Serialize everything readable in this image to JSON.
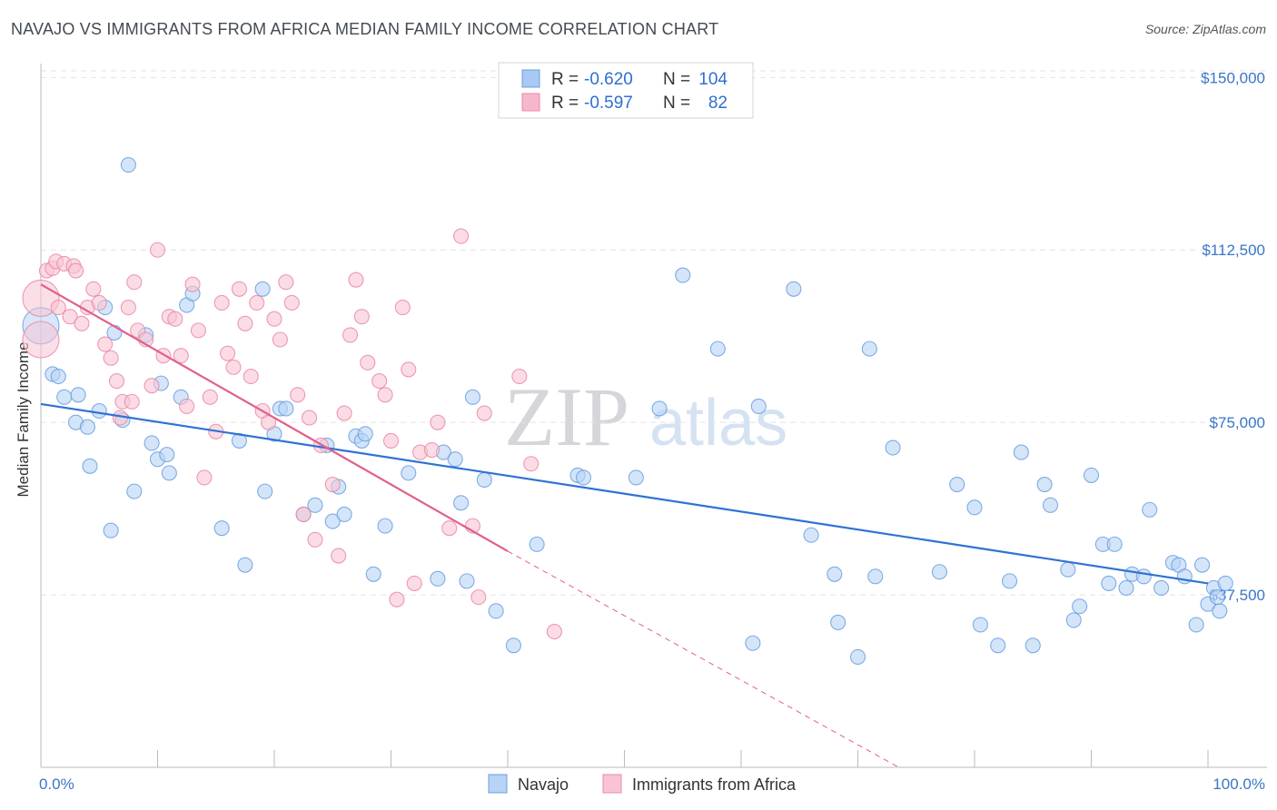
{
  "title": "NAVAJO VS IMMIGRANTS FROM AFRICA MEDIAN FAMILY INCOME CORRELATION CHART",
  "source": "Source: ZipAtlas.com",
  "watermark": {
    "zip": "ZIP",
    "atlas": "atlas"
  },
  "legend": {
    "rows": [
      {
        "r_label": "R =",
        "r_value": "-0.620",
        "n_label": "N =",
        "n_value": "104",
        "color": "#a9c8f2"
      },
      {
        "r_label": "R =",
        "r_value": "-0.597",
        "n_label": "N =",
        "n_value": "82",
        "color": "#f6b7cb"
      }
    ]
  },
  "chart_data": {
    "type": "scatter",
    "title": "NAVAJO VS IMMIGRANTS FROM AFRICA MEDIAN FAMILY INCOME CORRELATION CHART",
    "xlabel": "",
    "ylabel": "Median Family Income",
    "xlim": [
      0,
      100
    ],
    "ylim": [
      0,
      155000
    ],
    "x_tick_labels": [
      "0.0%",
      "100.0%"
    ],
    "y_ticks": [
      37500,
      75000,
      112500,
      150000
    ],
    "y_tick_labels": [
      "$37,500",
      "$75,000",
      "$112,500",
      "$150,000"
    ],
    "grid": true,
    "legend_position": "top-center",
    "series": [
      {
        "name": "Navajo",
        "color": "#6a9fe0",
        "fill": "#b8d3f5",
        "trend": {
          "x": [
            0,
            100
          ],
          "y": [
            79000,
            40000
          ],
          "color": "#2f72d4"
        },
        "points": [
          [
            0,
            96000,
            "L"
          ],
          [
            1,
            85500
          ],
          [
            1.5,
            85000
          ],
          [
            2,
            80500
          ],
          [
            3,
            75000
          ],
          [
            3.2,
            81000
          ],
          [
            4,
            74000
          ],
          [
            4.2,
            65500
          ],
          [
            5,
            77500
          ],
          [
            5.5,
            100000
          ],
          [
            6,
            51500
          ],
          [
            6.3,
            94500
          ],
          [
            7,
            75500
          ],
          [
            7.5,
            131000
          ],
          [
            8,
            60000
          ],
          [
            9,
            94000
          ],
          [
            9.5,
            70500
          ],
          [
            10,
            67000
          ],
          [
            10.3,
            83500
          ],
          [
            10.8,
            68000
          ],
          [
            11,
            64000
          ],
          [
            12,
            80500
          ],
          [
            12.5,
            100500
          ],
          [
            13,
            103000
          ],
          [
            15.5,
            52000
          ],
          [
            17,
            71000
          ],
          [
            17.5,
            44000
          ],
          [
            19,
            104000
          ],
          [
            19.2,
            60000
          ],
          [
            20,
            72500
          ],
          [
            20.5,
            78000
          ],
          [
            21,
            78000
          ],
          [
            22.5,
            55000
          ],
          [
            23.5,
            57000
          ],
          [
            24.5,
            70000
          ],
          [
            25,
            53500
          ],
          [
            25.5,
            61000
          ],
          [
            26,
            55000
          ],
          [
            27,
            72000
          ],
          [
            27.5,
            71000
          ],
          [
            27.8,
            72500
          ],
          [
            28.5,
            42000
          ],
          [
            29.5,
            52500
          ],
          [
            31.5,
            64000
          ],
          [
            34,
            41000
          ],
          [
            34.5,
            68500
          ],
          [
            35.5,
            67000
          ],
          [
            36.5,
            40500
          ],
          [
            36,
            57500
          ],
          [
            37,
            80500
          ],
          [
            38,
            62500
          ],
          [
            39,
            34000
          ],
          [
            40.5,
            26500
          ],
          [
            42.5,
            48500
          ],
          [
            46,
            63500
          ],
          [
            46.5,
            63000
          ],
          [
            51,
            63000
          ],
          [
            53,
            78000
          ],
          [
            55,
            107000
          ],
          [
            58,
            91000
          ],
          [
            61,
            27000
          ],
          [
            61.5,
            78500
          ],
          [
            64.5,
            104000
          ],
          [
            66,
            50500
          ],
          [
            68,
            42000
          ],
          [
            68.3,
            31500
          ],
          [
            70,
            24000
          ],
          [
            71,
            91000
          ],
          [
            71.5,
            41500
          ],
          [
            73,
            69500
          ],
          [
            77,
            42500
          ],
          [
            78.5,
            61500
          ],
          [
            80,
            56500
          ],
          [
            80.5,
            31000
          ],
          [
            82,
            26500
          ],
          [
            83,
            40500
          ],
          [
            84,
            68500
          ],
          [
            85,
            26500
          ],
          [
            86,
            61500
          ],
          [
            86.5,
            57000
          ],
          [
            88,
            43000
          ],
          [
            88.5,
            32000
          ],
          [
            89,
            35000
          ],
          [
            90,
            63500
          ],
          [
            91,
            48500
          ],
          [
            91.5,
            40000
          ],
          [
            92,
            48500
          ],
          [
            93,
            39000
          ],
          [
            93.5,
            42000
          ],
          [
            94.5,
            41500
          ],
          [
            95,
            56000
          ],
          [
            96,
            39000
          ],
          [
            97,
            44500
          ],
          [
            97.5,
            44000
          ],
          [
            98,
            41500
          ],
          [
            99,
            31000
          ],
          [
            99.5,
            44000
          ],
          [
            100,
            35500
          ],
          [
            100.5,
            39000
          ],
          [
            101,
            34000
          ],
          [
            101.5,
            40000
          ],
          [
            100.8,
            37000
          ]
        ]
      },
      {
        "name": "Immigrants from Africa",
        "color": "#e98aa8",
        "fill": "#f8c4d4",
        "trend": {
          "x": [
            0,
            40
          ],
          "y": [
            105000,
            47000
          ],
          "color": "#e0608a",
          "dashed_extension_to": [
            73.5,
            0
          ]
        },
        "points": [
          [
            0,
            102000,
            "L"
          ],
          [
            0,
            93000,
            "L"
          ],
          [
            0.5,
            108000
          ],
          [
            1,
            108500
          ],
          [
            1.3,
            110000
          ],
          [
            1.5,
            100000
          ],
          [
            2,
            109500
          ],
          [
            2.5,
            98000
          ],
          [
            2.8,
            109000
          ],
          [
            3,
            108000
          ],
          [
            3.5,
            96500
          ],
          [
            4,
            100000
          ],
          [
            4.5,
            104000
          ],
          [
            5,
            101000
          ],
          [
            5.5,
            92000
          ],
          [
            6,
            89000
          ],
          [
            6.5,
            84000
          ],
          [
            7,
            79500
          ],
          [
            7.5,
            100000
          ],
          [
            8,
            105500
          ],
          [
            8.3,
            95000
          ],
          [
            9,
            93000
          ],
          [
            9.5,
            83000
          ],
          [
            10,
            112500
          ],
          [
            10.5,
            89500
          ],
          [
            11,
            98000
          ],
          [
            11.5,
            97500
          ],
          [
            12,
            89500
          ],
          [
            12.5,
            78500
          ],
          [
            13,
            105000
          ],
          [
            13.5,
            95000
          ],
          [
            14,
            63000
          ],
          [
            14.5,
            80500
          ],
          [
            15,
            73000
          ],
          [
            15.5,
            101000
          ],
          [
            16,
            90000
          ],
          [
            16.5,
            87000
          ],
          [
            17,
            104000
          ],
          [
            17.5,
            96500
          ],
          [
            18,
            85000
          ],
          [
            18.5,
            101000
          ],
          [
            19,
            77500
          ],
          [
            19.5,
            75000
          ],
          [
            20,
            97500
          ],
          [
            20.5,
            93000
          ],
          [
            21,
            105500
          ],
          [
            21.5,
            101000
          ],
          [
            22,
            81000
          ],
          [
            22.5,
            55000
          ],
          [
            23,
            76000
          ],
          [
            23.5,
            49500
          ],
          [
            24,
            70000
          ],
          [
            25,
            61500
          ],
          [
            25.5,
            46000
          ],
          [
            26,
            77000
          ],
          [
            26.5,
            94000
          ],
          [
            27,
            106000
          ],
          [
            27.5,
            98000
          ],
          [
            28,
            88000
          ],
          [
            29,
            84000
          ],
          [
            29.5,
            81000
          ],
          [
            30,
            71000
          ],
          [
            30.5,
            36500
          ],
          [
            31,
            100000
          ],
          [
            31.5,
            86500
          ],
          [
            32,
            40000
          ],
          [
            32.5,
            68500
          ],
          [
            33.5,
            69000
          ],
          [
            34,
            75000
          ],
          [
            35,
            52000
          ],
          [
            36,
            115500
          ],
          [
            37,
            52500
          ],
          [
            37.5,
            37000
          ],
          [
            38,
            77000
          ],
          [
            41,
            85000
          ],
          [
            42,
            66000
          ],
          [
            44,
            29500
          ],
          [
            7.8,
            79500
          ],
          [
            6.8,
            76000
          ]
        ]
      }
    ]
  },
  "bottom_legend": [
    {
      "label": "Navajo",
      "color": "#b8d3f5"
    },
    {
      "label": "Immigrants from Africa",
      "color": "#f8c4d4"
    }
  ]
}
